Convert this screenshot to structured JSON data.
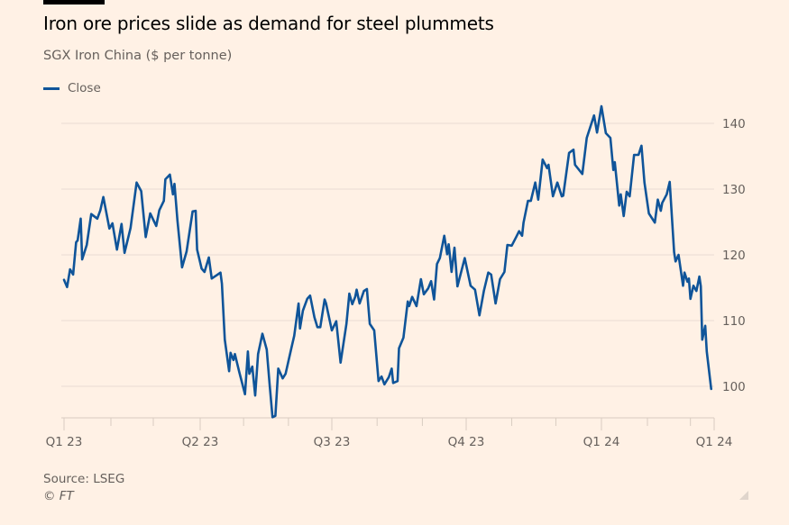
{
  "title": "Iron ore prices slide as demand for steel plummets",
  "subtitle": "SGX Iron China ($ per tonne)",
  "source": "Source: LSEG",
  "copyright": "© FT",
  "chart_data": {
    "type": "line",
    "title": "Iron ore prices slide as demand for steel plummets",
    "subtitle": "SGX Iron China ($ per tonne)",
    "xlabel": "",
    "ylabel": "",
    "xlim": [
      "2023-01-01",
      "2024-03-17"
    ],
    "ylim": [
      95,
      143
    ],
    "y_ticks": [
      100,
      110,
      120,
      130,
      140
    ],
    "y_axis_position": "right",
    "x_ticks": [
      {
        "date": "2023-01-01",
        "label": "Q1 23"
      },
      {
        "date": "2023-04-01",
        "label": "Q2 23"
      },
      {
        "date": "2023-07-01",
        "label": "Q3 23"
      },
      {
        "date": "2023-10-01",
        "label": "Q4 23"
      },
      {
        "date": "2024-01-01",
        "label": "Q1 24"
      },
      {
        "date": "2024-03-17",
        "label": "Q1 24"
      }
    ],
    "grid": "horizontal",
    "legend_position": "top-left",
    "colors": {
      "background": "#FFF1E5",
      "line": "#0F5499",
      "grid": "#E8DCD2",
      "text": "#66605C"
    },
    "series": [
      {
        "name": "Close",
        "x": [
          "2023-01-01",
          "2023-01-03",
          "2023-01-05",
          "2023-01-07",
          "2023-01-09",
          "2023-01-10",
          "2023-01-12",
          "2023-01-13",
          "2023-01-16",
          "2023-01-19",
          "2023-01-23",
          "2023-01-25",
          "2023-01-27",
          "2023-01-31",
          "2023-02-02",
          "2023-02-05",
          "2023-02-08",
          "2023-02-10",
          "2023-02-14",
          "2023-02-18",
          "2023-02-21",
          "2023-02-24",
          "2023-02-27",
          "2023-03-03",
          "2023-03-05",
          "2023-03-08",
          "2023-03-09",
          "2023-03-12",
          "2023-03-14",
          "2023-03-15",
          "2023-03-17",
          "2023-03-20",
          "2023-03-23",
          "2023-03-27",
          "2023-03-29",
          "2023-03-30",
          "2023-04-02",
          "2023-04-04",
          "2023-04-07",
          "2023-04-09",
          "2023-04-13",
          "2023-04-15",
          "2023-04-16",
          "2023-04-18",
          "2023-04-21",
          "2023-04-22",
          "2023-04-24",
          "2023-04-25",
          "2023-04-28",
          "2023-05-02",
          "2023-05-04",
          "2023-05-05",
          "2023-05-07",
          "2023-05-09",
          "2023-05-11",
          "2023-05-14",
          "2023-05-17",
          "2023-05-19",
          "2023-05-21",
          "2023-05-23",
          "2023-05-25",
          "2023-05-28",
          "2023-05-30",
          "2023-06-03",
          "2023-06-05",
          "2023-06-08",
          "2023-06-09",
          "2023-06-11",
          "2023-06-14",
          "2023-06-16",
          "2023-06-19",
          "2023-06-21",
          "2023-06-23",
          "2023-06-26",
          "2023-06-27",
          "2023-07-01",
          "2023-07-04",
          "2023-07-07",
          "2023-07-11",
          "2023-07-13",
          "2023-07-15",
          "2023-07-17",
          "2023-07-18",
          "2023-07-20",
          "2023-07-23",
          "2023-07-25",
          "2023-07-27",
          "2023-07-30",
          "2023-08-02",
          "2023-08-04",
          "2023-08-06",
          "2023-08-09",
          "2023-08-11",
          "2023-08-12",
          "2023-08-15",
          "2023-08-16",
          "2023-08-19",
          "2023-08-22",
          "2023-08-23",
          "2023-08-25",
          "2023-08-28",
          "2023-08-31",
          "2023-09-02",
          "2023-09-05",
          "2023-09-07",
          "2023-09-09",
          "2023-09-11",
          "2023-09-13",
          "2023-09-16",
          "2023-09-18",
          "2023-09-19",
          "2023-09-21",
          "2023-09-23",
          "2023-09-25",
          "2023-09-30",
          "2023-10-04",
          "2023-10-07",
          "2023-10-10",
          "2023-10-13",
          "2023-10-16",
          "2023-10-18",
          "2023-10-21",
          "2023-10-24",
          "2023-10-27",
          "2023-10-29",
          "2023-11-01",
          "2023-11-04",
          "2023-11-06",
          "2023-11-08",
          "2023-11-09",
          "2023-11-12",
          "2023-11-14",
          "2023-11-17",
          "2023-11-19",
          "2023-11-22",
          "2023-11-25",
          "2023-11-26",
          "2023-11-29",
          "2023-12-02",
          "2023-12-05",
          "2023-12-06",
          "2023-12-10",
          "2023-12-13",
          "2023-12-14",
          "2023-12-19",
          "2023-12-22",
          "2023-12-27",
          "2023-12-29",
          "2024-01-01",
          "2024-01-04",
          "2024-01-07",
          "2024-01-09",
          "2024-01-10",
          "2024-01-13",
          "2024-01-14",
          "2024-01-16",
          "2024-01-18",
          "2024-01-20",
          "2024-01-23",
          "2024-01-26",
          "2024-01-28",
          "2024-01-30",
          "2024-02-02",
          "2024-02-06",
          "2024-02-08",
          "2024-02-10",
          "2024-02-11",
          "2024-02-14",
          "2024-02-16",
          "2024-02-19",
          "2024-02-20",
          "2024-02-22",
          "2024-02-25",
          "2024-02-26",
          "2024-02-28",
          "2024-02-29",
          "2024-03-01",
          "2024-03-03",
          "2024-03-05",
          "2024-03-07",
          "2024-03-08",
          "2024-03-09",
          "2024-03-11",
          "2024-03-12",
          "2024-03-15"
        ],
        "values": [
          116.2,
          115.1,
          117.8,
          117.0,
          121.9,
          122.2,
          125.5,
          119.3,
          121.5,
          126.2,
          125.5,
          126.8,
          128.8,
          124.0,
          124.8,
          120.8,
          124.7,
          120.3,
          124.1,
          131.0,
          129.7,
          122.7,
          126.3,
          124.4,
          126.8,
          128.2,
          131.5,
          132.2,
          129.2,
          130.8,
          125.2,
          118.1,
          120.5,
          126.6,
          126.7,
          120.8,
          117.9,
          117.4,
          119.6,
          116.4,
          117.0,
          117.3,
          115.6,
          107.1,
          102.3,
          105.1,
          104.0,
          104.9,
          102.2,
          98.8,
          105.3,
          101.9,
          103.0,
          98.6,
          104.9,
          108.0,
          105.6,
          100.3,
          95.3,
          95.5,
          102.7,
          101.2,
          101.9,
          105.8,
          107.7,
          112.6,
          108.8,
          111.5,
          113.3,
          113.8,
          110.5,
          109.0,
          109.0,
          113.2,
          112.6,
          108.5,
          109.9,
          103.6,
          109.5,
          114.1,
          112.5,
          113.6,
          114.7,
          112.6,
          114.5,
          114.8,
          109.5,
          108.5,
          100.8,
          101.5,
          100.3,
          101.4,
          102.7,
          100.5,
          100.8,
          105.8,
          107.4,
          112.9,
          112.2,
          113.6,
          112.2,
          116.3,
          114.0,
          114.9,
          116.0,
          113.2,
          118.6,
          119.5,
          122.9,
          120.1,
          121.6,
          117.4,
          121.1,
          115.2,
          119.5,
          115.3,
          114.7,
          110.8,
          114.5,
          117.3,
          117.0,
          112.6,
          116.3,
          117.4,
          121.5,
          121.4,
          122.7,
          123.6,
          122.9,
          124.9,
          128.2,
          128.2,
          131.0,
          128.4,
          134.5,
          133.2,
          133.7,
          128.9,
          131.0,
          128.9,
          129.0,
          135.5,
          136.0,
          133.7,
          132.3,
          137.8,
          141.2,
          138.6,
          142.6,
          138.5,
          137.8,
          132.9,
          134.1,
          127.5,
          129.2,
          125.9,
          129.6,
          128.9,
          135.2,
          135.2,
          136.6,
          131.0,
          126.3,
          124.9,
          128.4,
          126.7,
          127.9,
          129.2,
          131.1,
          120.4,
          119.0,
          120.0,
          115.3,
          117.3,
          115.9,
          116.4,
          113.3,
          115.3,
          114.5,
          116.7,
          115.2,
          107.1,
          109.2,
          105.3,
          99.6
        ]
      }
    ]
  }
}
